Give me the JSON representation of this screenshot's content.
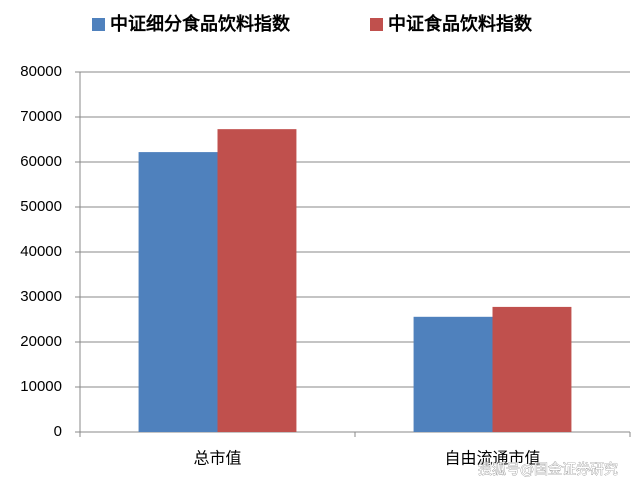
{
  "chart_data": {
    "type": "bar",
    "categories": [
      "总市值",
      "自由流通市值"
    ],
    "series": [
      {
        "name": "中证细分食品饮料指数",
        "color": "#4f81bd",
        "values": [
          62200,
          25600
        ]
      },
      {
        "name": "中证食品饮料指数",
        "color": "#c0504d",
        "values": [
          67300,
          27800
        ]
      }
    ],
    "ylim": [
      0,
      80000
    ],
    "yticks": [
      0,
      10000,
      20000,
      30000,
      40000,
      50000,
      60000,
      70000,
      80000
    ],
    "grid": true,
    "legend": "top",
    "watermark": "搜狐号@国金证券研究"
  }
}
